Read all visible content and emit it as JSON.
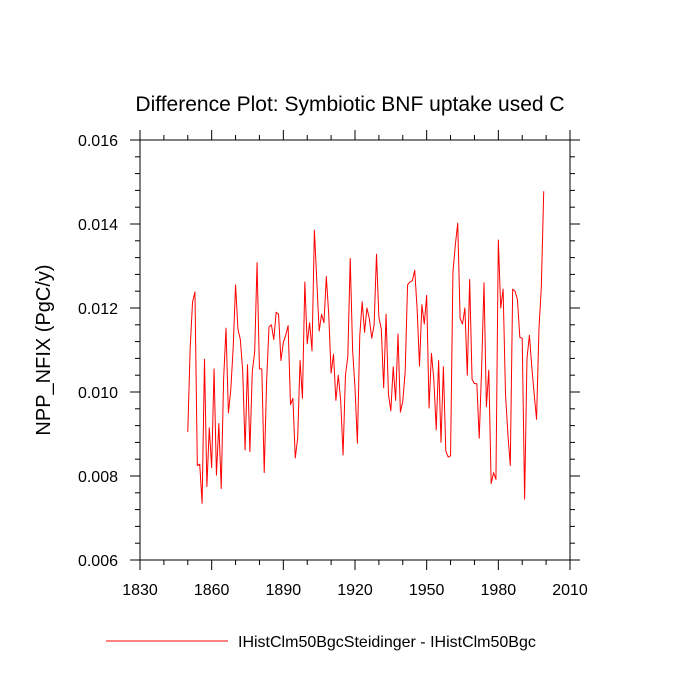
{
  "chart_data": {
    "type": "line",
    "title": "Difference Plot: Symbiotic BNF uptake used C",
    "xlabel": "",
    "ylabel": "NPP_NFIX  (PgC/y)",
    "xlim": [
      1830,
      2010
    ],
    "ylim": [
      0.006,
      0.016
    ],
    "x_ticks": [
      "1830",
      "1860",
      "1890",
      "1920",
      "1950",
      "1980",
      "2010"
    ],
    "y_ticks": [
      "0.006",
      "0.008",
      "0.010",
      "0.012",
      "0.014",
      "0.016"
    ],
    "grid": false,
    "legend": "bottom",
    "series": [
      {
        "name": "IHistClm50BgcSteidinger - IHistClm50Bgc",
        "color": "#ff0000",
        "x_start": 1850,
        "x_step": 1,
        "values": [
          0.00905,
          0.01105,
          0.01215,
          0.01238,
          0.00825,
          0.00828,
          0.00735,
          0.01078,
          0.00775,
          0.00915,
          0.0082,
          0.01055,
          0.00802,
          0.00925,
          0.0077,
          0.0103,
          0.01152,
          0.0095,
          0.01005,
          0.01105,
          0.01255,
          0.0115,
          0.01125,
          0.0105,
          0.00862,
          0.01065,
          0.00858,
          0.01048,
          0.01095,
          0.01308,
          0.01055,
          0.01055,
          0.00808,
          0.01025,
          0.01155,
          0.0116,
          0.01125,
          0.0119,
          0.01185,
          0.01075,
          0.01118,
          0.01135,
          0.01158,
          0.0097,
          0.00985,
          0.00843,
          0.0089,
          0.01075,
          0.00985,
          0.01262,
          0.01115,
          0.01165,
          0.01098,
          0.01385,
          0.01265,
          0.01145,
          0.01185,
          0.01165,
          0.01275,
          0.01185,
          0.01045,
          0.0109,
          0.0098,
          0.0104,
          0.0098,
          0.0085,
          0.0104,
          0.01085,
          0.01318,
          0.011,
          0.0101,
          0.00878,
          0.01135,
          0.01215,
          0.01142,
          0.012,
          0.01175,
          0.01128,
          0.0116,
          0.01328,
          0.01178,
          0.0115,
          0.0101,
          0.01185,
          0.00995,
          0.00955,
          0.0106,
          0.0098,
          0.01138,
          0.00952,
          0.00978,
          0.01048,
          0.01255,
          0.01262,
          0.01265,
          0.0129,
          0.01198,
          0.01062,
          0.01208,
          0.01162,
          0.0123,
          0.00962,
          0.01092,
          0.0103,
          0.0091,
          0.01075,
          0.0088,
          0.0106,
          0.0086,
          0.00845,
          0.00848,
          0.01285,
          0.0135,
          0.01402,
          0.01175,
          0.01162,
          0.012,
          0.0104,
          0.01268,
          0.0103,
          0.0102,
          0.0102,
          0.0089,
          0.01055,
          0.0126,
          0.00965,
          0.01052,
          0.00782,
          0.00808,
          0.00792,
          0.01362,
          0.012,
          0.01245,
          0.00995,
          0.009,
          0.00825,
          0.01245,
          0.0124,
          0.0122,
          0.0113,
          0.01128,
          0.00745,
          0.0108,
          0.01135,
          0.0106,
          0.00995,
          0.00935,
          0.0115,
          0.0125,
          0.01478
        ]
      }
    ]
  }
}
